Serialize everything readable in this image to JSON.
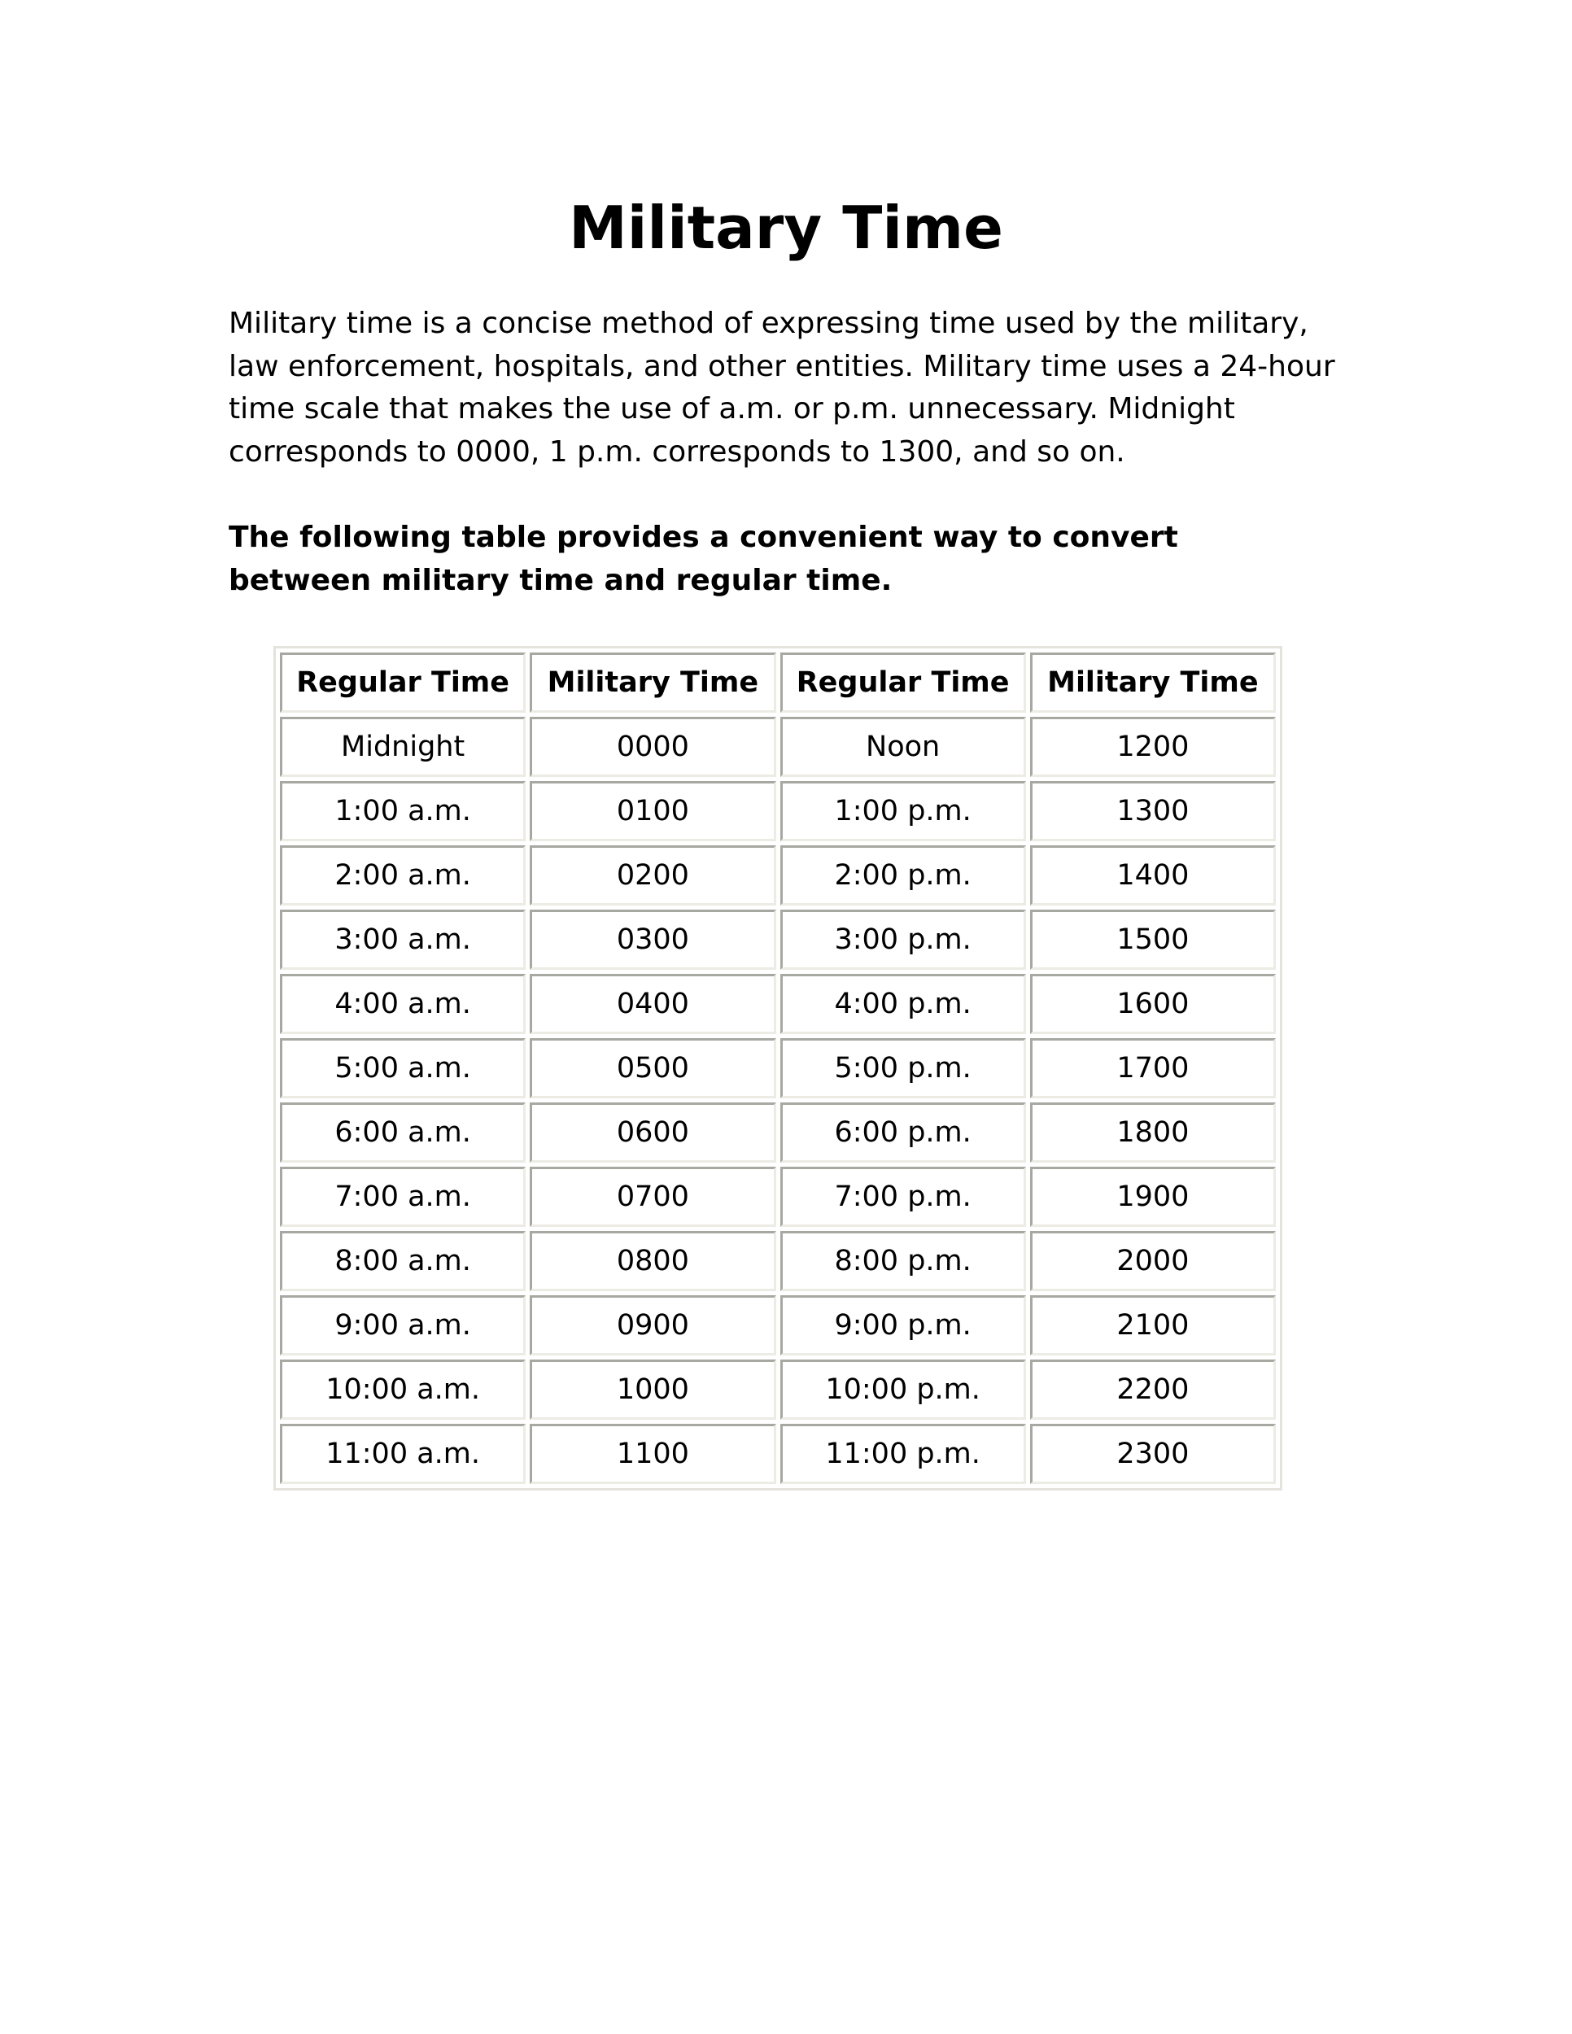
{
  "title": "Military Time",
  "intro": "Military time is a concise method of expressing time used by the military, law enforcement, hospitals, and other entities. Military time uses a 24-hour time scale that makes the use of a.m. or p.m. unnecessary. Midnight corresponds to 0000, 1 p.m. corresponds to 1300, and so on.",
  "lead": "The following table provides a convenient way to convert between military time and regular time.",
  "table": {
    "headers": [
      "Regular Time",
      "Military Time",
      "Regular Time",
      "Military Time"
    ],
    "rows": [
      [
        "Midnight",
        "0000",
        "Noon",
        "1200"
      ],
      [
        "1:00 a.m.",
        "0100",
        "1:00 p.m.",
        "1300"
      ],
      [
        "2:00 a.m.",
        "0200",
        "2:00 p.m.",
        "1400"
      ],
      [
        "3:00 a.m.",
        "0300",
        "3:00 p.m.",
        "1500"
      ],
      [
        "4:00 a.m.",
        "0400",
        "4:00 p.m.",
        "1600"
      ],
      [
        "5:00 a.m.",
        "0500",
        "5:00 p.m.",
        "1700"
      ],
      [
        "6:00 a.m.",
        "0600",
        "6:00 p.m.",
        "1800"
      ],
      [
        "7:00 a.m.",
        "0700",
        "7:00 p.m.",
        "1900"
      ],
      [
        "8:00 a.m.",
        "0800",
        "8:00 p.m.",
        "2000"
      ],
      [
        "9:00 a.m.",
        "0900",
        "9:00 p.m.",
        "2100"
      ],
      [
        "10:00 a.m.",
        "1000",
        "10:00 p.m.",
        "2200"
      ],
      [
        "11:00 a.m.",
        "1100",
        "11:00 p.m.",
        "2300"
      ]
    ]
  }
}
